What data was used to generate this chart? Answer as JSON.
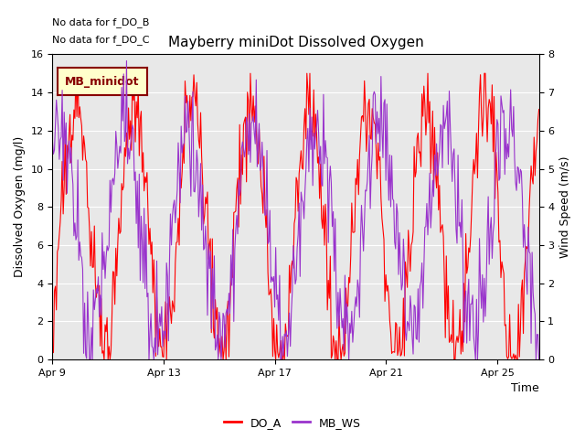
{
  "title": "Mayberry miniDot Dissolved Oxygen",
  "xlabel": "Time",
  "ylabel_left": "Dissolved Oxygen (mg/l)",
  "ylabel_right": "Wind Speed (m/s)",
  "ylim_left": [
    0,
    16
  ],
  "ylim_right": [
    0.0,
    8.0
  ],
  "yticks_left": [
    0,
    2,
    4,
    6,
    8,
    10,
    12,
    14,
    16
  ],
  "yticks_right": [
    0.0,
    1.0,
    2.0,
    3.0,
    4.0,
    5.0,
    6.0,
    7.0,
    8.0
  ],
  "xtick_labels": [
    "Apr 9",
    "Apr 13",
    "Apr 17",
    "Apr 21",
    "Apr 25"
  ],
  "xtick_positions": [
    0,
    4,
    8,
    12,
    16
  ],
  "xlim": [
    0,
    17.5
  ],
  "no_data_texts": [
    "No data for f_DO_B",
    "No data for f_DO_C"
  ],
  "legend_box_label": "MB_minidot",
  "legend_box_facecolor": "#ffffcc",
  "legend_box_edgecolor": "#880000",
  "legend_box_textcolor": "#880000",
  "do_a_color": "#ff0000",
  "mb_ws_color": "#9933cc",
  "plot_bg_color": "#e8e8e8",
  "fig_bg_color": "#ffffff",
  "seed_do": 100,
  "seed_ws": 200,
  "n_points": 500,
  "x_days": 17.5
}
